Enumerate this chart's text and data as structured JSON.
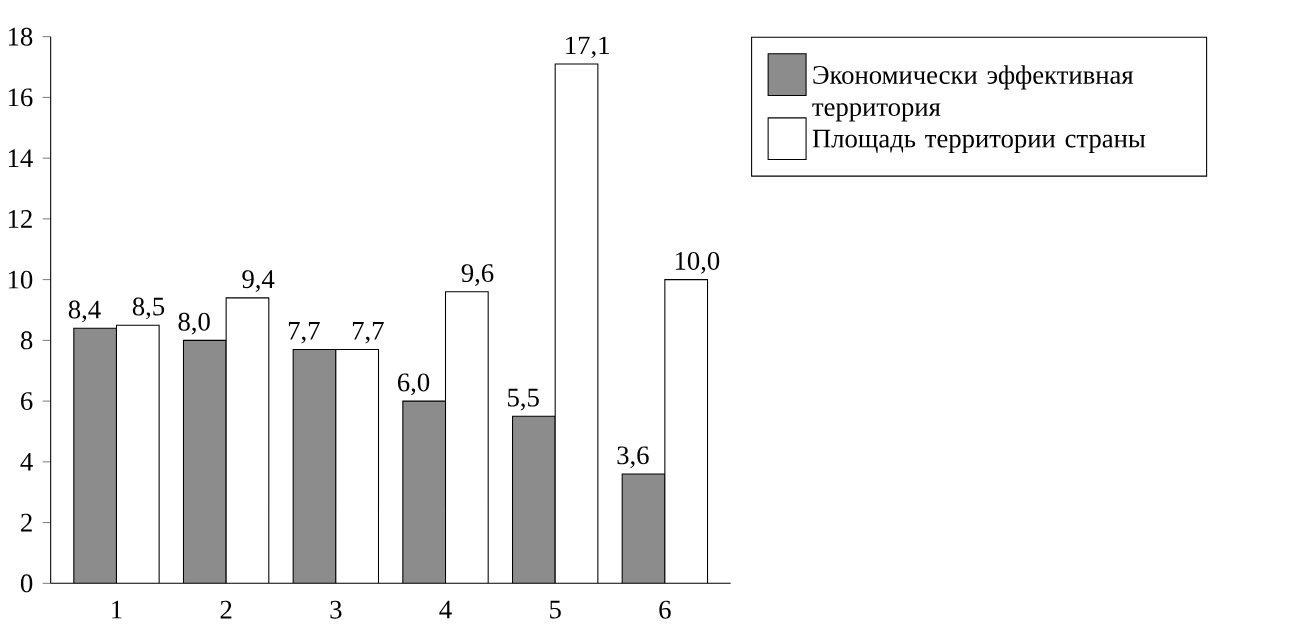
{
  "chart_data": {
    "type": "bar",
    "categories": [
      "1",
      "2",
      "3",
      "4",
      "5",
      "6"
    ],
    "series": [
      {
        "name": "Экономически эффективная территория",
        "color": "#8c8c8c",
        "values": [
          8.4,
          8.0,
          7.7,
          6.0,
          5.5,
          3.6
        ],
        "value_labels": [
          "8,4",
          "8,0",
          "7,7",
          "6,0",
          "5,5",
          "3,6"
        ]
      },
      {
        "name": "Площадь территории страны",
        "color": "#ffffff",
        "values": [
          8.5,
          9.4,
          7.7,
          9.6,
          17.1,
          10.0
        ],
        "value_labels": [
          "8,5",
          "9,4",
          "7,7",
          "9,6",
          "17,1",
          "10,0"
        ]
      }
    ],
    "ylim": [
      0,
      18
    ],
    "yticks": [
      0,
      2,
      4,
      6,
      8,
      10,
      12,
      14,
      16,
      18
    ],
    "legend": "right"
  }
}
